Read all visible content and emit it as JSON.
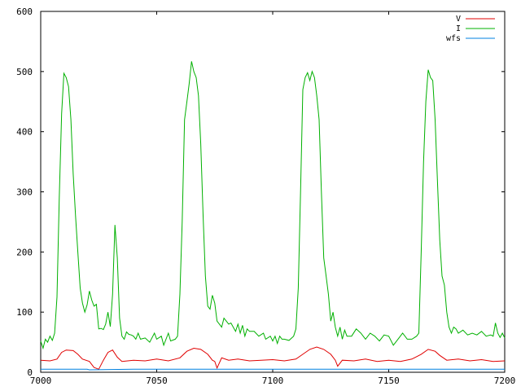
{
  "chart_data": {
    "type": "line",
    "title": "",
    "xlabel": "",
    "ylabel": "",
    "xlim": [
      7000,
      7200
    ],
    "ylim": [
      0,
      600
    ],
    "x_ticks": [
      7000,
      7050,
      7100,
      7150,
      7200
    ],
    "y_ticks": [
      0,
      100,
      200,
      300,
      400,
      500,
      600
    ],
    "grid": false,
    "legend_position": "top-right",
    "series": [
      {
        "name": "V",
        "color": "#e00000",
        "points": [
          [
            7000,
            20
          ],
          [
            7004,
            19
          ],
          [
            7007,
            22
          ],
          [
            7009,
            33
          ],
          [
            7011,
            37
          ],
          [
            7014,
            36
          ],
          [
            7016,
            30
          ],
          [
            7018,
            22
          ],
          [
            7021,
            18
          ],
          [
            7023,
            8
          ],
          [
            7025,
            5
          ],
          [
            7027,
            20
          ],
          [
            7029,
            33
          ],
          [
            7031,
            37
          ],
          [
            7033,
            25
          ],
          [
            7035,
            18
          ],
          [
            7040,
            20
          ],
          [
            7045,
            19
          ],
          [
            7050,
            22
          ],
          [
            7055,
            19
          ],
          [
            7060,
            24
          ],
          [
            7063,
            35
          ],
          [
            7066,
            40
          ],
          [
            7069,
            38
          ],
          [
            7072,
            30
          ],
          [
            7074,
            20
          ],
          [
            7075,
            18
          ],
          [
            7076,
            7
          ],
          [
            7078,
            24
          ],
          [
            7081,
            20
          ],
          [
            7085,
            22
          ],
          [
            7090,
            19
          ],
          [
            7095,
            20
          ],
          [
            7100,
            21
          ],
          [
            7105,
            19
          ],
          [
            7110,
            22
          ],
          [
            7113,
            30
          ],
          [
            7116,
            38
          ],
          [
            7119,
            42
          ],
          [
            7122,
            38
          ],
          [
            7125,
            30
          ],
          [
            7127,
            20
          ],
          [
            7128,
            10
          ],
          [
            7130,
            20
          ],
          [
            7135,
            19
          ],
          [
            7140,
            22
          ],
          [
            7145,
            18
          ],
          [
            7150,
            20
          ],
          [
            7155,
            18
          ],
          [
            7160,
            22
          ],
          [
            7164,
            30
          ],
          [
            7167,
            38
          ],
          [
            7170,
            35
          ],
          [
            7172,
            28
          ],
          [
            7175,
            20
          ],
          [
            7180,
            22
          ],
          [
            7185,
            19
          ],
          [
            7190,
            21
          ],
          [
            7195,
            18
          ],
          [
            7200,
            19
          ]
        ]
      },
      {
        "name": "I",
        "color": "#00b000",
        "points": [
          [
            7000,
            52
          ],
          [
            7001,
            40
          ],
          [
            7002,
            55
          ],
          [
            7003,
            50
          ],
          [
            7004,
            60
          ],
          [
            7005,
            53
          ],
          [
            7006,
            65
          ],
          [
            7007,
            125
          ],
          [
            7008,
            290
          ],
          [
            7009,
            430
          ],
          [
            7010,
            497
          ],
          [
            7011,
            490
          ],
          [
            7012,
            475
          ],
          [
            7013,
            420
          ],
          [
            7014,
            330
          ],
          [
            7015,
            260
          ],
          [
            7016,
            200
          ],
          [
            7017,
            140
          ],
          [
            7018,
            115
          ],
          [
            7019,
            100
          ],
          [
            7020,
            112
          ],
          [
            7021,
            135
          ],
          [
            7022,
            120
          ],
          [
            7023,
            110
          ],
          [
            7024,
            113
          ],
          [
            7025,
            72
          ],
          [
            7026,
            73
          ],
          [
            7027,
            71
          ],
          [
            7028,
            80
          ],
          [
            7029,
            100
          ],
          [
            7030,
            76
          ],
          [
            7031,
            130
          ],
          [
            7032,
            245
          ],
          [
            7033,
            190
          ],
          [
            7034,
            90
          ],
          [
            7035,
            60
          ],
          [
            7036,
            55
          ],
          [
            7037,
            67
          ],
          [
            7038,
            63
          ],
          [
            7039,
            62
          ],
          [
            7040,
            60
          ],
          [
            7041,
            55
          ],
          [
            7042,
            65
          ],
          [
            7043,
            55
          ],
          [
            7045,
            57
          ],
          [
            7047,
            50
          ],
          [
            7049,
            65
          ],
          [
            7050,
            55
          ],
          [
            7052,
            60
          ],
          [
            7053,
            45
          ],
          [
            7055,
            65
          ],
          [
            7056,
            52
          ],
          [
            7058,
            55
          ],
          [
            7059,
            60
          ],
          [
            7060,
            130
          ],
          [
            7061,
            250
          ],
          [
            7062,
            420
          ],
          [
            7063,
            450
          ],
          [
            7064,
            480
          ],
          [
            7065,
            517
          ],
          [
            7066,
            500
          ],
          [
            7067,
            490
          ],
          [
            7068,
            460
          ],
          [
            7069,
            380
          ],
          [
            7070,
            260
          ],
          [
            7071,
            160
          ],
          [
            7072,
            110
          ],
          [
            7073,
            105
          ],
          [
            7074,
            128
          ],
          [
            7075,
            115
          ],
          [
            7076,
            85
          ],
          [
            7077,
            80
          ],
          [
            7078,
            75
          ],
          [
            7079,
            90
          ],
          [
            7080,
            85
          ],
          [
            7081,
            80
          ],
          [
            7082,
            82
          ],
          [
            7083,
            75
          ],
          [
            7084,
            68
          ],
          [
            7085,
            80
          ],
          [
            7086,
            65
          ],
          [
            7087,
            78
          ],
          [
            7088,
            60
          ],
          [
            7089,
            72
          ],
          [
            7090,
            68
          ],
          [
            7092,
            68
          ],
          [
            7094,
            60
          ],
          [
            7096,
            65
          ],
          [
            7097,
            55
          ],
          [
            7099,
            60
          ],
          [
            7100,
            52
          ],
          [
            7101,
            60
          ],
          [
            7102,
            48
          ],
          [
            7103,
            60
          ],
          [
            7104,
            55
          ],
          [
            7105,
            55
          ],
          [
            7107,
            53
          ],
          [
            7109,
            60
          ],
          [
            7110,
            72
          ],
          [
            7111,
            140
          ],
          [
            7112,
            300
          ],
          [
            7113,
            470
          ],
          [
            7114,
            490
          ],
          [
            7115,
            498
          ],
          [
            7116,
            485
          ],
          [
            7117,
            500
          ],
          [
            7118,
            490
          ],
          [
            7119,
            460
          ],
          [
            7120,
            420
          ],
          [
            7121,
            300
          ],
          [
            7122,
            190
          ],
          [
            7123,
            160
          ],
          [
            7124,
            130
          ],
          [
            7125,
            85
          ],
          [
            7126,
            100
          ],
          [
            7127,
            75
          ],
          [
            7128,
            60
          ],
          [
            7129,
            75
          ],
          [
            7130,
            55
          ],
          [
            7131,
            70
          ],
          [
            7132,
            60
          ],
          [
            7134,
            60
          ],
          [
            7136,
            72
          ],
          [
            7138,
            65
          ],
          [
            7140,
            55
          ],
          [
            7142,
            65
          ],
          [
            7144,
            60
          ],
          [
            7146,
            52
          ],
          [
            7148,
            62
          ],
          [
            7150,
            60
          ],
          [
            7152,
            45
          ],
          [
            7154,
            55
          ],
          [
            7156,
            65
          ],
          [
            7158,
            55
          ],
          [
            7160,
            55
          ],
          [
            7162,
            60
          ],
          [
            7163,
            65
          ],
          [
            7164,
            200
          ],
          [
            7165,
            350
          ],
          [
            7166,
            450
          ],
          [
            7167,
            503
          ],
          [
            7168,
            490
          ],
          [
            7169,
            485
          ],
          [
            7170,
            420
          ],
          [
            7171,
            320
          ],
          [
            7172,
            220
          ],
          [
            7173,
            160
          ],
          [
            7174,
            145
          ],
          [
            7175,
            100
          ],
          [
            7176,
            75
          ],
          [
            7177,
            65
          ],
          [
            7178,
            75
          ],
          [
            7179,
            72
          ],
          [
            7180,
            65
          ],
          [
            7182,
            70
          ],
          [
            7184,
            62
          ],
          [
            7186,
            65
          ],
          [
            7188,
            62
          ],
          [
            7190,
            68
          ],
          [
            7192,
            60
          ],
          [
            7194,
            62
          ],
          [
            7195,
            60
          ],
          [
            7196,
            82
          ],
          [
            7197,
            65
          ],
          [
            7198,
            58
          ],
          [
            7199,
            65
          ],
          [
            7200,
            57
          ]
        ]
      },
      {
        "name": "wfs",
        "color": "#0080e0",
        "points": [
          [
            7000,
            5
          ],
          [
            7020,
            5
          ],
          [
            7021,
            4
          ],
          [
            7040,
            5
          ],
          [
            7060,
            5
          ],
          [
            7100,
            5
          ],
          [
            7140,
            5
          ],
          [
            7180,
            5
          ],
          [
            7200,
            5
          ]
        ]
      }
    ]
  }
}
